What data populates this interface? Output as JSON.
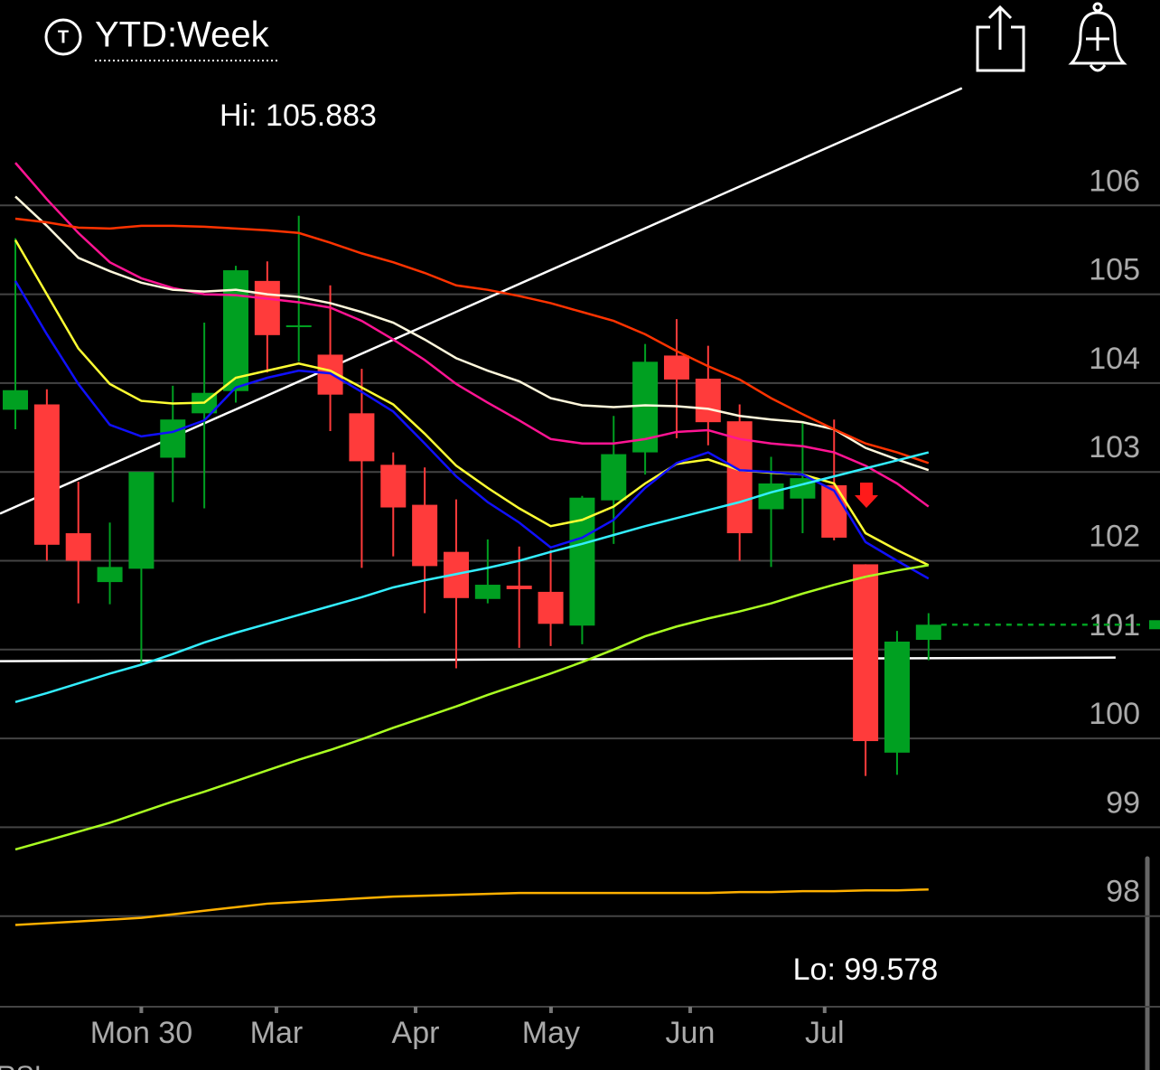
{
  "header": {
    "title": "YTD:Week"
  },
  "chart_data": {
    "type": "candlestick",
    "hi_label": "Hi: 105.883",
    "lo_label": "Lo: 99.578",
    "footer_label": "RSI",
    "x": [
      0,
      1,
      2,
      3,
      4,
      5,
      6,
      7,
      8,
      9,
      10,
      11,
      12,
      13,
      14,
      15,
      16,
      17,
      18,
      19,
      20,
      21,
      22,
      23,
      24,
      25,
      26,
      27,
      28,
      29
    ],
    "open": [
      103.7,
      103.76,
      102.31,
      101.76,
      101.91,
      103.16,
      103.66,
      103.91,
      105.15,
      104.63,
      104.32,
      103.66,
      103.08,
      102.63,
      102.1,
      101.57,
      101.72,
      101.65,
      101.27,
      102.68,
      103.22,
      104.31,
      104.05,
      103.57,
      102.58,
      102.7,
      102.85,
      101.96,
      99.84,
      101.11
    ],
    "high": [
      105.63,
      103.93,
      102.89,
      102.43,
      103.0,
      103.97,
      104.68,
      105.32,
      105.37,
      105.883,
      105.1,
      104.16,
      103.22,
      103.05,
      102.69,
      102.24,
      102.16,
      102.12,
      102.73,
      103.63,
      104.44,
      104.72,
      104.42,
      103.76,
      103.17,
      103.56,
      103.59,
      101.96,
      101.21,
      101.41
    ],
    "low": [
      103.48,
      102.0,
      101.52,
      101.51,
      100.83,
      102.66,
      102.59,
      103.78,
      104.12,
      104.24,
      103.46,
      101.92,
      102.05,
      101.41,
      100.79,
      101.52,
      101.02,
      101.04,
      101.06,
      102.19,
      102.97,
      103.38,
      103.3,
      102.0,
      101.93,
      102.31,
      102.23,
      99.578,
      99.59,
      100.88
    ],
    "close": [
      103.92,
      102.18,
      102.0,
      101.93,
      103.0,
      103.59,
      103.89,
      105.27,
      104.54,
      104.65,
      103.87,
      103.12,
      102.6,
      101.94,
      101.58,
      101.73,
      101.68,
      101.29,
      102.71,
      103.2,
      104.24,
      104.04,
      103.56,
      102.31,
      102.87,
      102.93,
      102.26,
      99.97,
      101.09,
      101.28
    ],
    "up_color": "#00a021",
    "down_color": "#ff3b3b",
    "series": [
      {
        "color": "#ff1493",
        "values": [
          106.48,
          106.07,
          105.69,
          105.36,
          105.18,
          105.07,
          105.0,
          104.99,
          104.95,
          104.91,
          104.85,
          104.7,
          104.49,
          104.26,
          103.99,
          103.78,
          103.58,
          103.37,
          103.32,
          103.32,
          103.37,
          103.45,
          103.47,
          103.37,
          103.32,
          103.29,
          103.22,
          103.07,
          102.87,
          102.61
        ]
      },
      {
        "color": "#fff8dc",
        "values": [
          106.1,
          105.77,
          105.41,
          105.26,
          105.13,
          105.05,
          105.03,
          105.05,
          105.0,
          104.97,
          104.9,
          104.8,
          104.68,
          104.49,
          104.28,
          104.14,
          104.02,
          103.83,
          103.75,
          103.73,
          103.75,
          103.74,
          103.71,
          103.63,
          103.59,
          103.56,
          103.48,
          103.27,
          103.14,
          103.02
        ]
      },
      {
        "color": "#ff3300",
        "values": [
          105.85,
          105.81,
          105.75,
          105.74,
          105.77,
          105.77,
          105.76,
          105.74,
          105.72,
          105.69,
          105.58,
          105.46,
          105.36,
          105.24,
          105.1,
          105.05,
          104.98,
          104.9,
          104.8,
          104.7,
          104.55,
          104.36,
          104.19,
          104.04,
          103.83,
          103.65,
          103.48,
          103.32,
          103.22,
          103.1
        ]
      },
      {
        "color": "#ffff33",
        "values": [
          105.61,
          105.0,
          104.39,
          103.99,
          103.8,
          103.77,
          103.78,
          104.06,
          104.14,
          104.22,
          104.14,
          103.95,
          103.76,
          103.43,
          103.07,
          102.82,
          102.59,
          102.39,
          102.46,
          102.61,
          102.87,
          103.09,
          103.14,
          103.02,
          102.99,
          102.97,
          102.87,
          102.31,
          102.12,
          101.95
        ]
      },
      {
        "color": "#1010ff",
        "values": [
          105.15,
          104.55,
          103.99,
          103.53,
          103.4,
          103.45,
          103.58,
          103.95,
          104.06,
          104.14,
          104.11,
          103.9,
          103.68,
          103.32,
          102.95,
          102.66,
          102.43,
          102.15,
          102.26,
          102.46,
          102.82,
          103.1,
          103.22,
          103.02,
          103.0,
          102.97,
          102.79,
          102.21,
          102.0,
          101.8
        ]
      },
      {
        "color": "#33eeff",
        "values": [
          100.41,
          100.51,
          100.62,
          100.73,
          100.83,
          100.95,
          101.08,
          101.19,
          101.29,
          101.39,
          101.49,
          101.59,
          101.7,
          101.78,
          101.85,
          101.92,
          102.0,
          102.1,
          102.19,
          102.29,
          102.39,
          102.48,
          102.57,
          102.66,
          102.77,
          102.86,
          102.95,
          103.04,
          103.13,
          103.22
        ]
      },
      {
        "color": "#aaff22",
        "values": [
          98.75,
          98.85,
          98.95,
          99.05,
          99.17,
          99.29,
          99.4,
          99.52,
          99.64,
          99.76,
          99.87,
          99.99,
          100.12,
          100.24,
          100.36,
          100.49,
          100.61,
          100.73,
          100.86,
          101.0,
          101.15,
          101.26,
          101.35,
          101.43,
          101.52,
          101.63,
          101.73,
          101.82,
          101.89,
          101.95
        ]
      },
      {
        "color": "#ffb000",
        "values": [
          97.9,
          97.92,
          97.94,
          97.96,
          97.98,
          98.02,
          98.06,
          98.1,
          98.14,
          98.16,
          98.18,
          98.2,
          98.22,
          98.23,
          98.24,
          98.25,
          98.26,
          98.26,
          98.26,
          98.26,
          98.26,
          98.26,
          98.26,
          98.27,
          98.27,
          98.28,
          98.28,
          98.29,
          98.29,
          98.3
        ]
      }
    ],
    "lines": [
      {
        "color": "#ffffff",
        "x": [
          -0.488,
          30.06
        ],
        "values": [
          102.53,
          107.32
        ]
      },
      {
        "color": "#ffffff",
        "x": [
          -0.488,
          34.94
        ],
        "values": [
          100.87,
          100.91
        ]
      }
    ],
    "xlim": [
      -0.488,
      36.35
    ],
    "ylim": [
      97,
      107.35
    ],
    "yticks": [
      98,
      99,
      100,
      101,
      102,
      103,
      104,
      105,
      106
    ],
    "xticks": [
      {
        "value": 4.0,
        "label": "Mon 30"
      },
      {
        "value": 8.29,
        "label": "Mar"
      },
      {
        "value": 12.71,
        "label": "Apr"
      },
      {
        "value": 17.01,
        "label": "May"
      },
      {
        "value": 21.43,
        "label": "Jun"
      },
      {
        "value": 25.7,
        "label": "Jul"
      }
    ],
    "grid": true
  }
}
